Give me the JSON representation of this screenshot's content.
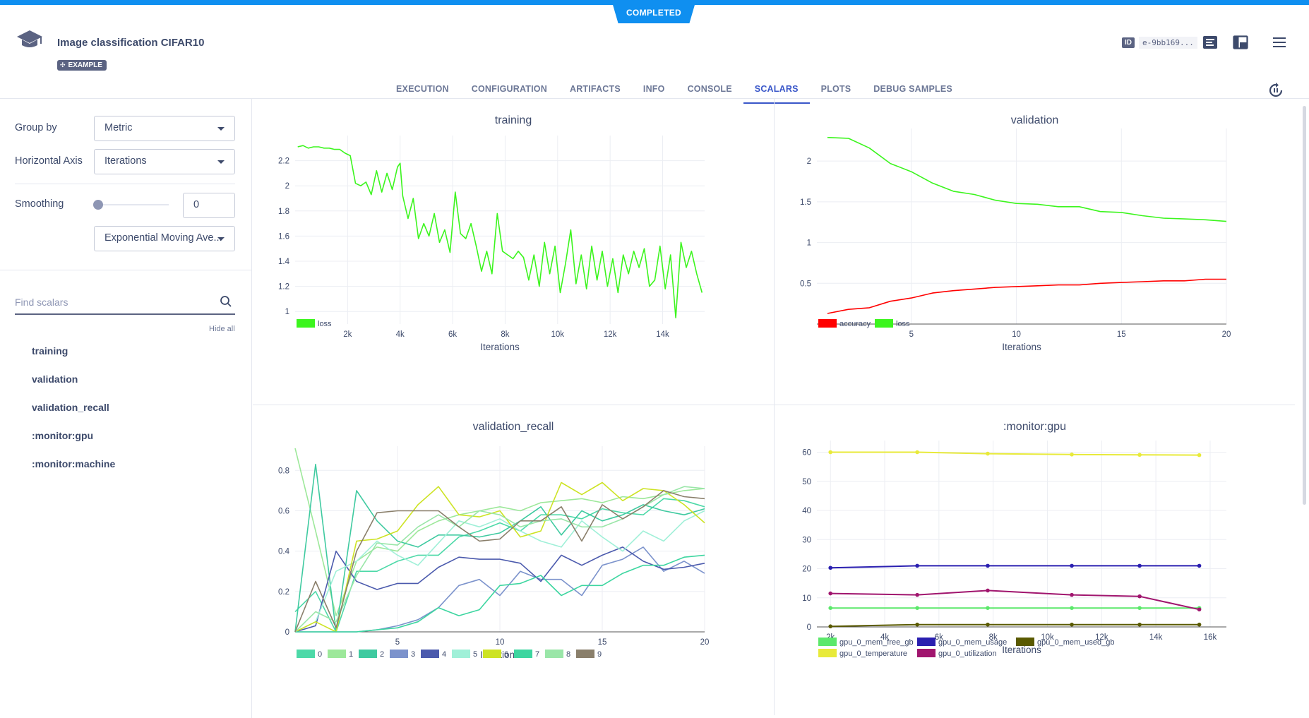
{
  "status": "COMPLETED",
  "header": {
    "title": "Image classification CIFAR10",
    "badge": "EXAMPLE",
    "id_tag": "ID",
    "id_value": "e-9bb169..."
  },
  "tabs": [
    "EXECUTION",
    "CONFIGURATION",
    "ARTIFACTS",
    "INFO",
    "CONSOLE",
    "SCALARS",
    "PLOTS",
    "DEBUG SAMPLES"
  ],
  "active_tab": "SCALARS",
  "sidebar": {
    "group_by_label": "Group by",
    "group_by_value": "Metric",
    "horizontal_axis_label": "Horizontal Axis",
    "horizontal_axis_value": "Iterations",
    "smoothing_label": "Smoothing",
    "smoothing_value": "0",
    "smoothing_method": "Exponential Moving Ave...",
    "search_placeholder": "Find scalars",
    "hide_all": "Hide all",
    "scalars": [
      "training",
      "validation",
      "validation_recall",
      ":monitor:gpu",
      ":monitor:machine"
    ]
  },
  "chart_data": [
    {
      "type": "line",
      "title": "training",
      "xlabel": "Iterations",
      "xlim": [
        0,
        15600
      ],
      "ylim": [
        0.9,
        2.4
      ],
      "xticks": [
        2000,
        4000,
        6000,
        8000,
        10000,
        12000,
        14000
      ],
      "xtick_labels": [
        "2k",
        "4k",
        "6k",
        "8k",
        "10k",
        "12k",
        "14k"
      ],
      "yticks": [
        1,
        1.2,
        1.4,
        1.6,
        1.8,
        2,
        2.2
      ],
      "yticks_labels": [
        "1",
        "1.2",
        "1.4",
        "1.6",
        "1.8",
        "2",
        "2.2"
      ],
      "legend": "bottom-left",
      "series": [
        {
          "name": "loss",
          "color": "#3cf51e",
          "x": [
            100,
            300,
            500,
            700,
            900,
            1100,
            1300,
            1500,
            1700,
            1900,
            2100,
            2300,
            2500,
            2700,
            2900,
            3100,
            3300,
            3500,
            3700,
            3900,
            4000,
            4100,
            4300,
            4500,
            4700,
            4900,
            5100,
            5300,
            5500,
            5700,
            5900,
            6100,
            6300,
            6500,
            6700,
            6900,
            7100,
            7300,
            7500,
            7700,
            7900,
            8100,
            8300,
            8500,
            8700,
            8900,
            9100,
            9300,
            9500,
            9700,
            9900,
            10100,
            10300,
            10500,
            10700,
            10900,
            11100,
            11300,
            11500,
            11700,
            11900,
            12100,
            12300,
            12500,
            12700,
            12900,
            13100,
            13300,
            13500,
            13700,
            13900,
            14100,
            14300,
            14500,
            14700,
            14900,
            15100,
            15300,
            15500
          ],
          "y": [
            2.31,
            2.32,
            2.3,
            2.31,
            2.31,
            2.3,
            2.3,
            2.29,
            2.29,
            2.26,
            2.24,
            2.02,
            2.0,
            2.03,
            1.93,
            2.12,
            1.95,
            2.1,
            1.97,
            2.15,
            2.18,
            1.92,
            1.74,
            1.9,
            1.58,
            1.7,
            1.6,
            1.78,
            1.55,
            1.65,
            1.47,
            1.95,
            1.62,
            1.58,
            1.7,
            1.52,
            1.32,
            1.48,
            1.3,
            1.78,
            1.48,
            1.45,
            1.42,
            1.48,
            1.43,
            1.25,
            1.45,
            1.2,
            1.55,
            1.3,
            1.52,
            1.15,
            1.38,
            1.65,
            1.22,
            1.45,
            1.18,
            1.52,
            1.25,
            1.48,
            1.2,
            1.42,
            1.15,
            1.45,
            1.3,
            1.48,
            1.35,
            1.5,
            1.2,
            1.25,
            1.52,
            1.18,
            1.45,
            0.95,
            1.55,
            1.35,
            1.48,
            1.3,
            1.15
          ]
        }
      ]
    },
    {
      "type": "line",
      "title": "validation",
      "xlabel": "Iterations",
      "xlim": [
        0.5,
        20
      ],
      "ylim": [
        0,
        2.4
      ],
      "xticks": [
        5,
        10,
        15,
        20
      ],
      "yticks": [
        0.5,
        1,
        1.5,
        2
      ],
      "legend": "bottom-left",
      "series": [
        {
          "name": "accuracy",
          "color": "#ff0000",
          "x": [
            1,
            2,
            3,
            4,
            5,
            6,
            7,
            8,
            9,
            10,
            11,
            12,
            13,
            14,
            15,
            16,
            17,
            18,
            19,
            20
          ],
          "y": [
            0.13,
            0.18,
            0.2,
            0.28,
            0.32,
            0.38,
            0.41,
            0.43,
            0.45,
            0.46,
            0.47,
            0.48,
            0.48,
            0.5,
            0.51,
            0.52,
            0.53,
            0.53,
            0.55,
            0.55
          ]
        },
        {
          "name": "loss",
          "color": "#3cf51e",
          "x": [
            1,
            2,
            3,
            4,
            5,
            6,
            7,
            8,
            9,
            10,
            11,
            12,
            13,
            14,
            15,
            16,
            17,
            18,
            19,
            20
          ],
          "y": [
            2.29,
            2.28,
            2.16,
            1.97,
            1.87,
            1.73,
            1.63,
            1.59,
            1.52,
            1.48,
            1.47,
            1.44,
            1.44,
            1.38,
            1.37,
            1.33,
            1.3,
            1.29,
            1.28,
            1.26
          ]
        }
      ]
    },
    {
      "type": "line",
      "title": "validation_recall",
      "xlabel": "Iterations",
      "xlim": [
        0,
        20
      ],
      "ylim": [
        0,
        0.92
      ],
      "xticks": [
        5,
        10,
        15,
        20
      ],
      "yticks": [
        0,
        0.2,
        0.4,
        0.6,
        0.8
      ],
      "legend": "bottom-left",
      "series": [
        {
          "name": "0",
          "color": "#4dd9a8",
          "x": [
            0,
            1,
            2,
            3,
            4,
            5,
            6,
            7,
            8,
            9,
            10,
            11,
            12,
            13,
            14,
            15,
            16,
            17,
            18,
            19,
            20
          ],
          "y": [
            0.1,
            0.2,
            0.0,
            0.3,
            0.3,
            0.35,
            0.38,
            0.38,
            0.47,
            0.5,
            0.54,
            0.5,
            0.58,
            0.58,
            0.56,
            0.61,
            0.59,
            0.58,
            0.66,
            0.65,
            0.62
          ]
        },
        {
          "name": "1",
          "color": "#9de89a",
          "x": [
            0,
            1,
            2,
            3,
            4,
            5,
            6,
            7,
            8,
            9,
            10,
            11,
            12,
            13,
            14,
            15,
            16,
            17,
            18,
            19,
            20
          ],
          "y": [
            0.91,
            0.5,
            0.08,
            0.35,
            0.42,
            0.4,
            0.5,
            0.55,
            0.58,
            0.6,
            0.62,
            0.6,
            0.64,
            0.65,
            0.66,
            0.64,
            0.67,
            0.66,
            0.68,
            0.7,
            0.71
          ]
        },
        {
          "name": "2",
          "color": "#3fcaa0",
          "x": [
            0,
            1,
            2,
            3,
            4,
            5,
            6,
            7,
            8,
            9,
            10,
            11,
            12,
            13,
            14,
            15,
            16,
            17,
            18,
            19,
            20
          ],
          "y": [
            0.0,
            0.83,
            0.0,
            0.7,
            0.55,
            0.45,
            0.42,
            0.48,
            0.48,
            0.47,
            0.49,
            0.55,
            0.62,
            0.48,
            0.6,
            0.55,
            0.58,
            0.63,
            0.6,
            0.58,
            0.61
          ]
        },
        {
          "name": "3",
          "color": "#7c93cc",
          "x": [
            0,
            1,
            2,
            3,
            4,
            5,
            6,
            7,
            8,
            9,
            10,
            11,
            12,
            13,
            14,
            15,
            16,
            17,
            18,
            19,
            20
          ],
          "y": [
            0.0,
            0.0,
            0.0,
            0.0,
            0.01,
            0.03,
            0.06,
            0.12,
            0.23,
            0.26,
            0.18,
            0.3,
            0.26,
            0.26,
            0.18,
            0.33,
            0.36,
            0.42,
            0.3,
            0.35,
            0.29
          ]
        },
        {
          "name": "4",
          "color": "#4b5aad",
          "x": [
            0,
            1,
            2,
            3,
            4,
            5,
            6,
            7,
            8,
            9,
            10,
            11,
            12,
            13,
            14,
            15,
            16,
            17,
            18,
            19,
            20
          ],
          "y": [
            0.0,
            0.03,
            0.4,
            0.25,
            0.21,
            0.24,
            0.24,
            0.32,
            0.37,
            0.36,
            0.36,
            0.34,
            0.25,
            0.38,
            0.33,
            0.38,
            0.42,
            0.35,
            0.31,
            0.32,
            0.34
          ]
        },
        {
          "name": "5",
          "color": "#a0f0d8",
          "x": [
            0,
            1,
            2,
            3,
            4,
            5,
            6,
            7,
            8,
            9,
            10,
            11,
            12,
            13,
            14,
            15,
            16,
            17,
            18,
            19,
            20
          ],
          "y": [
            0.0,
            0.05,
            0.3,
            0.35,
            0.45,
            0.38,
            0.33,
            0.44,
            0.55,
            0.52,
            0.56,
            0.5,
            0.45,
            0.42,
            0.55,
            0.47,
            0.4,
            0.5,
            0.45,
            0.55,
            0.6
          ]
        },
        {
          "name": "6",
          "color": "#cde324",
          "x": [
            0,
            1,
            2,
            3,
            4,
            5,
            6,
            7,
            8,
            9,
            10,
            11,
            12,
            13,
            14,
            15,
            16,
            17,
            18,
            19,
            20
          ],
          "y": [
            0.0,
            0.05,
            0.0,
            0.45,
            0.46,
            0.5,
            0.63,
            0.72,
            0.58,
            0.57,
            0.6,
            0.47,
            0.5,
            0.74,
            0.68,
            0.74,
            0.65,
            0.71,
            0.7,
            0.63,
            0.54
          ]
        },
        {
          "name": "7",
          "color": "#3dd6a0",
          "x": [
            0,
            1,
            2,
            3,
            4,
            5,
            6,
            7,
            8,
            9,
            10,
            11,
            12,
            13,
            14,
            15,
            16,
            17,
            18,
            19,
            20
          ],
          "y": [
            0.0,
            0.0,
            0.0,
            0.0,
            0.01,
            0.02,
            0.05,
            0.12,
            0.08,
            0.11,
            0.23,
            0.24,
            0.28,
            0.18,
            0.23,
            0.23,
            0.29,
            0.33,
            0.33,
            0.37,
            0.38
          ]
        },
        {
          "name": "8",
          "color": "#9ae6a8",
          "x": [
            0,
            1,
            2,
            3,
            4,
            5,
            6,
            7,
            8,
            9,
            10,
            11,
            12,
            13,
            14,
            15,
            16,
            17,
            18,
            19,
            20
          ],
          "y": [
            0.0,
            0.1,
            0.05,
            0.28,
            0.44,
            0.43,
            0.52,
            0.58,
            0.52,
            0.6,
            0.58,
            0.52,
            0.55,
            0.56,
            0.52,
            0.52,
            0.56,
            0.62,
            0.68,
            0.72,
            0.71
          ]
        },
        {
          "name": "9",
          "color": "#8a7f6b",
          "x": [
            0,
            1,
            2,
            3,
            4,
            5,
            6,
            7,
            8,
            9,
            10,
            11,
            12,
            13,
            14,
            15,
            16,
            17,
            18,
            19,
            20
          ],
          "y": [
            0.0,
            0.25,
            0.02,
            0.4,
            0.59,
            0.6,
            0.6,
            0.6,
            0.52,
            0.45,
            0.46,
            0.55,
            0.55,
            0.62,
            0.45,
            0.63,
            0.56,
            0.62,
            0.7,
            0.67,
            0.66
          ]
        }
      ]
    },
    {
      "type": "line",
      "title": ":monitor:gpu",
      "xlabel": "Iterations",
      "xlim": [
        1500,
        16600
      ],
      "ylim": [
        0,
        64
      ],
      "xticks": [
        2000,
        4000,
        6000,
        8000,
        10000,
        12000,
        14000,
        16000
      ],
      "xtick_labels": [
        "2k",
        "4k",
        "6k",
        "8k",
        "10k",
        "12k",
        "14k",
        "16k"
      ],
      "yticks": [
        0,
        10,
        20,
        30,
        40,
        50,
        60
      ],
      "legend": "bottom-left",
      "series": [
        {
          "name": "gpu_0_mem_free_gb",
          "color": "#5ce86b",
          "x": [
            2000,
            5200,
            7800,
            10900,
            13400,
            15600
          ],
          "y": [
            6.5,
            6.5,
            6.5,
            6.5,
            6.5,
            6.5
          ]
        },
        {
          "name": "gpu_0_mem_usage",
          "color": "#2a1fb0",
          "x": [
            2000,
            5200,
            7800,
            10900,
            13400,
            15600
          ],
          "y": [
            20.3,
            21,
            21,
            21,
            21,
            21
          ]
        },
        {
          "name": "gpu_0_mem_used_gb",
          "color": "#5a5a00",
          "x": [
            2000,
            5200,
            7800,
            10900,
            13400,
            15600
          ],
          "y": [
            0.2,
            0.8,
            0.8,
            0.8,
            0.8,
            0.8
          ]
        },
        {
          "name": "gpu_0_temperature",
          "color": "#e8ea3a",
          "x": [
            2000,
            5200,
            7800,
            10900,
            13400,
            15600
          ],
          "y": [
            60,
            60,
            59.5,
            59.2,
            59.1,
            59
          ]
        },
        {
          "name": "gpu_0_utilization",
          "color": "#a0156e",
          "x": [
            2000,
            5200,
            7800,
            10900,
            13400,
            15600
          ],
          "y": [
            11.5,
            11,
            12.5,
            11,
            10.5,
            6
          ]
        }
      ]
    }
  ]
}
